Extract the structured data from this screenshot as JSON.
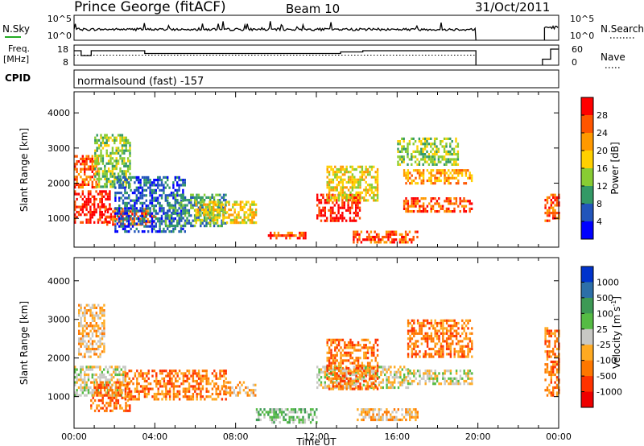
{
  "header": {
    "station": "Prince George (fitACF)",
    "beam": "Beam 10",
    "date": "31/Oct/2011"
  },
  "labels": {
    "nsky": "N.Sky",
    "nsearch": "N.Search",
    "freq_line1": "Freq.",
    "freq_line2": "[MHz]",
    "nave": "Nave",
    "cpid": "CPID",
    "cpid_value": "normalsound (fast) -157"
  },
  "colors": {
    "nsky_line": "#22aa22",
    "dotted": "#000000"
  },
  "chart_data": [
    {
      "type": "line",
      "name": "noise-panel",
      "left_ticks": [
        "10^5",
        "10^0"
      ],
      "right_ticks": [
        "10^5",
        "10^0"
      ],
      "x_range": [
        0,
        24
      ]
    },
    {
      "type": "line",
      "name": "frequency-nave-panel",
      "left_ticks": [
        "18",
        "8"
      ],
      "right_ticks": [
        "60",
        "0"
      ],
      "x_range": [
        0,
        24
      ],
      "series": [
        {
          "x": [
            0,
            0.35,
            0.35,
            0.85,
            0.85,
            3.5,
            3.5,
            13.2,
            13.2,
            14.3,
            14.3,
            19.9
          ],
          "values": [
            15.2,
            15.2,
            12.8,
            12.8,
            15.2,
            15.2,
            13.8,
            13.8,
            14.6,
            14.6,
            15.2,
            15.2
          ]
        },
        {
          "x": [
            0,
            19.9
          ],
          "values": [
            30,
            30
          ]
        }
      ]
    },
    {
      "type": "heatmap",
      "name": "power-panel",
      "x_range": [
        0,
        24
      ],
      "ylabel": "Slant Range [km]",
      "ylim": [
        180,
        4600
      ],
      "y_ticks": [
        "4000",
        "3000",
        "2000",
        "1000"
      ],
      "colorbar_label": "Power [dB]",
      "colorbar_ticks": [
        "28",
        "24",
        "20",
        "16",
        "12",
        "8",
        "4"
      ],
      "colorbar_colors": [
        "#ff0000",
        "#ff5500",
        "#ff9900",
        "#ffd000",
        "#88cc33",
        "#339966",
        "#2255bb",
        "#0000ff"
      ],
      "echo_regions": [
        {
          "t0": 0.0,
          "t1": 1.8,
          "r0": 900,
          "r1": 1800,
          "level": 0
        },
        {
          "t0": 0.0,
          "t1": 1.2,
          "r0": 1900,
          "r1": 2800,
          "level": 1
        },
        {
          "t0": 1.0,
          "t1": 2.8,
          "r0": 1900,
          "r1": 3400,
          "level": 4
        },
        {
          "t0": 1.5,
          "t1": 4.0,
          "r0": 800,
          "r1": 1300,
          "level": 1
        },
        {
          "t0": 2.0,
          "t1": 5.5,
          "r0": 600,
          "r1": 2200,
          "level": 6
        },
        {
          "t0": 4.5,
          "t1": 7.5,
          "r0": 800,
          "r1": 1700,
          "level": 5
        },
        {
          "t0": 6.0,
          "t1": 9.0,
          "r0": 900,
          "r1": 1500,
          "level": 3
        },
        {
          "t0": 9.5,
          "t1": 11.5,
          "r0": 420,
          "r1": 620,
          "level": 1
        },
        {
          "t0": 12.0,
          "t1": 14.2,
          "r0": 900,
          "r1": 1700,
          "level": 0
        },
        {
          "t0": 12.5,
          "t1": 15.0,
          "r0": 1500,
          "r1": 2500,
          "level": 3
        },
        {
          "t0": 13.8,
          "t1": 17.0,
          "r0": 300,
          "r1": 650,
          "level": 1
        },
        {
          "t0": 16.3,
          "t1": 19.7,
          "r0": 1200,
          "r1": 1600,
          "level": 1
        },
        {
          "t0": 16.3,
          "t1": 19.7,
          "r0": 2000,
          "r1": 2400,
          "level": 2
        },
        {
          "t0": 16.0,
          "t1": 19.0,
          "r0": 2500,
          "r1": 3300,
          "level": 4
        },
        {
          "t0": 23.3,
          "t1": 24.0,
          "r0": 900,
          "r1": 1700,
          "level": 1
        }
      ]
    },
    {
      "type": "heatmap",
      "name": "velocity-panel",
      "x_range": [
        0,
        24
      ],
      "xlabel": "Time UT",
      "ylabel": "Slant Range [km]",
      "ylim": [
        180,
        4600
      ],
      "y_ticks": [
        "4000",
        "3000",
        "2000",
        "1000"
      ],
      "x_ticks": [
        "00:00",
        "04:00",
        "08:00",
        "12:00",
        "16:00",
        "20:00",
        "00:00"
      ],
      "colorbar_label": "Velocity [m s",
      "colorbar_label_sup": "-1",
      "colorbar_label_end": "]",
      "colorbar_ticks": [
        "1000",
        "500",
        "100",
        "25",
        "-25",
        "-100",
        "-500",
        "-1000"
      ],
      "colorbar_colors": [
        "#0033cc",
        "#2d6fa8",
        "#3d9955",
        "#55bb44",
        "#c8c8c4",
        "#ffaa22",
        "#ff7700",
        "#ff3300",
        "#ee0000"
      ],
      "echo_regions": [
        {
          "t0": 0.0,
          "t1": 2.5,
          "r0": 1000,
          "r1": 1800,
          "level": 4
        },
        {
          "t0": 0.8,
          "t1": 2.8,
          "r0": 600,
          "r1": 1400,
          "level": 6
        },
        {
          "t0": 0.2,
          "t1": 1.5,
          "r0": 2000,
          "r1": 3400,
          "level": 5
        },
        {
          "t0": 2.5,
          "t1": 7.5,
          "r0": 900,
          "r1": 1700,
          "level": 6
        },
        {
          "t0": 7.5,
          "t1": 9.0,
          "r0": 1000,
          "r1": 1400,
          "level": 5
        },
        {
          "t0": 9.0,
          "t1": 12.0,
          "r0": 300,
          "r1": 700,
          "level": 3
        },
        {
          "t0": 12.0,
          "t1": 16.5,
          "r0": 1200,
          "r1": 1800,
          "level": 4
        },
        {
          "t0": 12.5,
          "t1": 15.0,
          "r0": 1200,
          "r1": 2500,
          "level": 6
        },
        {
          "t0": 14.0,
          "t1": 17.0,
          "r0": 400,
          "r1": 700,
          "level": 5
        },
        {
          "t0": 16.5,
          "t1": 19.7,
          "r0": 1300,
          "r1": 1700,
          "level": 4
        },
        {
          "t0": 16.5,
          "t1": 19.7,
          "r0": 2000,
          "r1": 3000,
          "level": 6
        },
        {
          "t0": 23.3,
          "t1": 24.0,
          "r0": 1000,
          "r1": 2800,
          "level": 6
        }
      ]
    }
  ]
}
